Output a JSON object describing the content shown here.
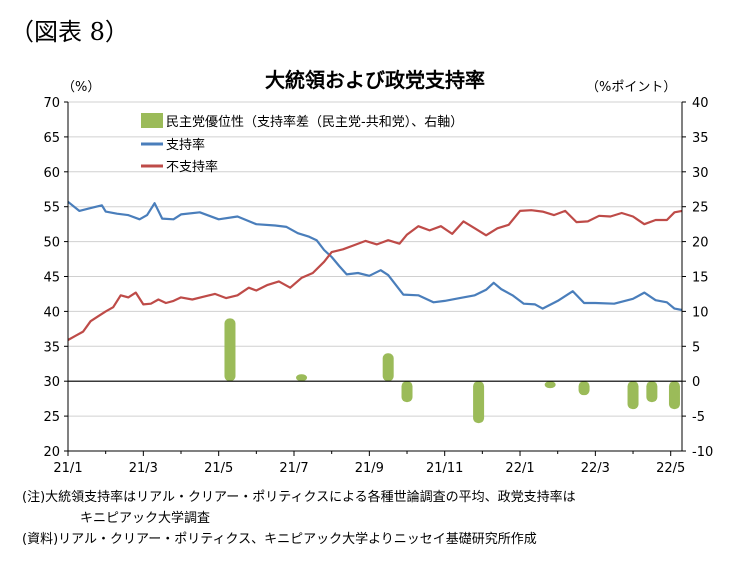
{
  "figure_label": "（図表 8）",
  "notes": [
    "(注)大統領支持率はリアル・クリアー・ポリティクスによる各種世論調査の平均、政党支持率は",
    "キニピアック大学調査",
    "(資料)リアル・クリアー・ポリティクス、キニピアック大学よりニッセイ基礎研究所作成"
  ],
  "chart_data": {
    "type": "line",
    "title": "大統領および政党支持率",
    "ylabel": "（%）",
    "y2label": "（%ポイント）",
    "ylim": [
      20,
      70
    ],
    "y2lim": [
      -10,
      40
    ],
    "yticks": [
      "20",
      "25",
      "30",
      "35",
      "40",
      "45",
      "50",
      "55",
      "60",
      "65",
      "70"
    ],
    "y2ticks": [
      "-10",
      "-5",
      "0",
      "5",
      "10",
      "15",
      "20",
      "25",
      "30",
      "35",
      "40"
    ],
    "xlim": [
      0,
      16.3
    ],
    "xtick_positions": [
      0,
      2,
      4,
      6,
      8,
      10,
      12,
      14,
      16
    ],
    "xticks": [
      "21/1",
      "21/3",
      "21/5",
      "21/7",
      "21/9",
      "21/11",
      "22/1",
      "22/3",
      "22/5"
    ],
    "grid": "horizontal",
    "legend_position": "top-left",
    "series": [
      {
        "name": "支持率",
        "axis": "left",
        "color": "#4a7ebb",
        "x": [
          0,
          0.3,
          0.6,
          0.9,
          1.0,
          1.3,
          1.6,
          1.9,
          2.1,
          2.3,
          2.5,
          2.8,
          3.0,
          3.5,
          4.0,
          4.5,
          5.0,
          5.5,
          5.8,
          6.1,
          6.4,
          6.6,
          6.8,
          7.0,
          7.2,
          7.4,
          7.7,
          8.0,
          8.3,
          8.5,
          8.9,
          9.3,
          9.7,
          10.0,
          10.4,
          10.8,
          11.1,
          11.3,
          11.5,
          11.8,
          12.1,
          12.4,
          12.6,
          13.0,
          13.4,
          13.7,
          14.0,
          14.5,
          15.0,
          15.3,
          15.6,
          15.9,
          16.1,
          16.3
        ],
        "values": [
          55.7,
          54.4,
          54.8,
          55.2,
          54.3,
          54.0,
          53.8,
          53.2,
          53.8,
          55.5,
          53.3,
          53.2,
          53.9,
          54.2,
          53.2,
          53.6,
          52.5,
          52.3,
          52.1,
          51.2,
          50.7,
          50.2,
          48.8,
          47.8,
          46.5,
          45.3,
          45.5,
          45.1,
          45.9,
          45.2,
          42.4,
          42.3,
          41.3,
          41.5,
          41.9,
          42.3,
          43.1,
          44.1,
          43.2,
          42.3,
          41.1,
          41.0,
          40.4,
          41.5,
          42.9,
          41.2,
          41.2,
          41.1,
          41.8,
          42.7,
          41.6,
          41.3,
          40.4,
          40.2
        ]
      },
      {
        "name": "不支持率",
        "axis": "left",
        "color": "#be4b48",
        "x": [
          0,
          0.2,
          0.4,
          0.6,
          0.8,
          1.0,
          1.2,
          1.4,
          1.6,
          1.8,
          2.0,
          2.2,
          2.4,
          2.6,
          2.8,
          3.0,
          3.3,
          3.6,
          3.9,
          4.2,
          4.5,
          4.8,
          5.0,
          5.3,
          5.6,
          5.9,
          6.2,
          6.5,
          6.8,
          7.0,
          7.3,
          7.6,
          7.9,
          8.2,
          8.5,
          8.8,
          9.0,
          9.3,
          9.6,
          9.9,
          10.2,
          10.5,
          10.8,
          11.1,
          11.4,
          11.7,
          12.0,
          12.3,
          12.6,
          12.9,
          13.2,
          13.5,
          13.8,
          14.1,
          14.4,
          14.7,
          15.0,
          15.3,
          15.6,
          15.9,
          16.1,
          16.3
        ],
        "values": [
          35.9,
          36.5,
          37.1,
          38.6,
          39.3,
          40.0,
          40.6,
          42.3,
          42.0,
          42.7,
          41.0,
          41.1,
          41.7,
          41.2,
          41.5,
          42.0,
          41.7,
          42.1,
          42.5,
          41.9,
          42.3,
          43.4,
          43.0,
          43.8,
          44.3,
          43.4,
          44.8,
          45.5,
          47.1,
          48.5,
          48.9,
          49.5,
          50.1,
          49.6,
          50.2,
          49.7,
          51.0,
          52.2,
          51.6,
          52.2,
          51.1,
          52.9,
          51.9,
          50.9,
          51.9,
          52.4,
          54.4,
          54.5,
          54.3,
          53.8,
          54.4,
          52.8,
          52.9,
          53.7,
          53.6,
          54.1,
          53.6,
          52.5,
          53.1,
          53.1,
          54.2,
          54.4
        ]
      }
    ],
    "bars": {
      "name": "民主党優位性（支持率差（民主党-共和党）、右軸）",
      "axis": "right",
      "color": "#9bbb59",
      "x": [
        4.3,
        6.2,
        8.5,
        9.0,
        10.9,
        12.8,
        13.7,
        15.0,
        15.5,
        16.1
      ],
      "values": [
        9,
        1,
        4,
        -3,
        -6,
        -1,
        -2,
        -4,
        -3,
        -4
      ]
    },
    "hline": 30
  }
}
